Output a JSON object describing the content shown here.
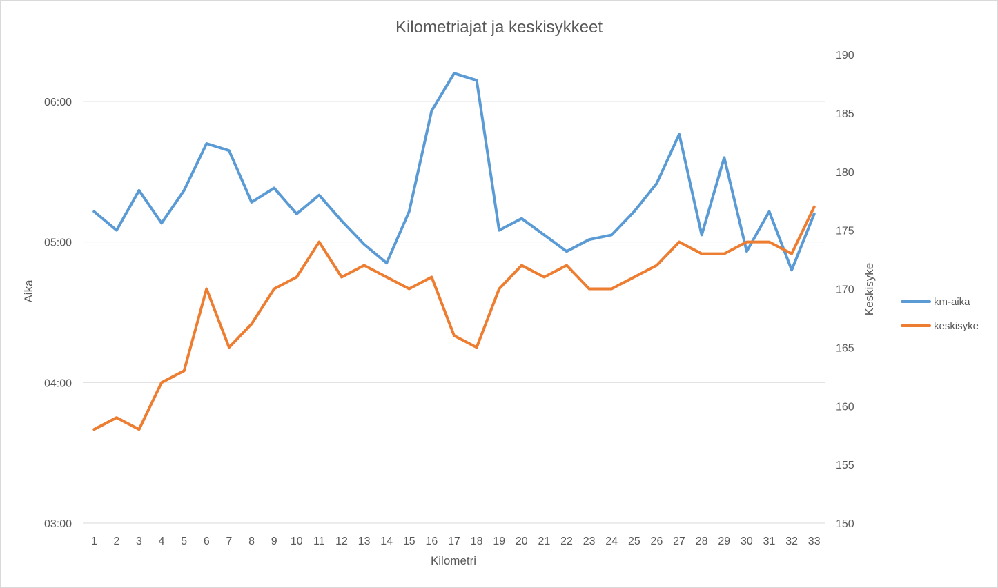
{
  "chart_data": {
    "type": "line",
    "title": "Kilometriajat ja keskisykkeet",
    "xlabel": "Kilometri",
    "ylabel_left": "Aika",
    "ylabel_right": "Keskisyke",
    "x": [
      1,
      2,
      3,
      4,
      5,
      6,
      7,
      8,
      9,
      10,
      11,
      12,
      13,
      14,
      15,
      16,
      17,
      18,
      19,
      20,
      21,
      22,
      23,
      24,
      25,
      26,
      27,
      28,
      29,
      30,
      31,
      32,
      33
    ],
    "y_left_ticks": [
      "03:00",
      "04:00",
      "05:00",
      "06:00"
    ],
    "y_left_range_seconds": [
      180,
      380
    ],
    "y_right_ticks": [
      "150",
      "155",
      "160",
      "165",
      "170",
      "175",
      "180",
      "185",
      "190"
    ],
    "y_right_range": [
      150,
      190
    ],
    "grid": true,
    "legend_position": "right",
    "series": [
      {
        "name": "km-aika",
        "axis": "left",
        "unit": "mm:ss",
        "color": "#5b9bd5",
        "values": [
          "05:13",
          "05:05",
          "05:22",
          "05:08",
          "05:22",
          "05:42",
          "05:39",
          "05:17",
          "05:23",
          "05:12",
          "05:20",
          "05:09",
          "04:59",
          "04:51",
          "05:13",
          "05:56",
          "06:12",
          "06:09",
          "05:05",
          "05:10",
          "05:03",
          "04:56",
          "05:01",
          "05:03",
          "05:13",
          "05:25",
          "05:46",
          "05:03",
          "05:36",
          "04:56",
          "05:13",
          "04:48",
          "05:12"
        ]
      },
      {
        "name": "keskisyke",
        "axis": "right",
        "color": "#ed7d31",
        "values": [
          158,
          159,
          158,
          162,
          163,
          170,
          165,
          167,
          170,
          171,
          174,
          171,
          172,
          171,
          170,
          171,
          166,
          165,
          170,
          172,
          171,
          172,
          170,
          170,
          171,
          172,
          174,
          173,
          173,
          174,
          174,
          173,
          177
        ]
      }
    ]
  }
}
